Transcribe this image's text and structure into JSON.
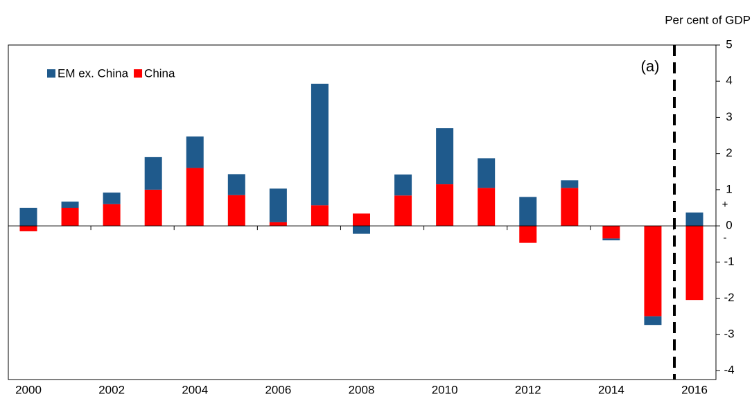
{
  "chart_data": {
    "type": "stacked-bar",
    "y_axis_label": "Per cent of GDP",
    "annotation": "(a)",
    "positive_sign": "+",
    "negative_sign": "-",
    "categories": [
      "2000",
      null,
      "2002",
      null,
      "2004",
      null,
      "2006",
      null,
      "2008",
      null,
      "2010",
      null,
      "2012",
      null,
      "2014",
      null,
      "2016"
    ],
    "series": [
      {
        "name": "China",
        "color": "#ff0000",
        "values": [
          -0.15,
          0.5,
          0.6,
          1.0,
          1.6,
          0.85,
          0.1,
          0.57,
          0.34,
          0.84,
          1.15,
          1.05,
          -0.47,
          1.05,
          -0.35,
          -2.5,
          -2.05
        ]
      },
      {
        "name": "EM ex. China",
        "color": "#1f5a8c",
        "values": [
          0.5,
          0.17,
          0.32,
          0.9,
          0.87,
          0.58,
          0.93,
          3.36,
          -0.22,
          0.58,
          1.55,
          0.82,
          0.8,
          0.21,
          -0.05,
          -0.24,
          0.37
        ]
      }
    ],
    "legend_order": [
      1,
      0
    ],
    "ylim": [
      -4,
      5
    ],
    "yticks": [
      -4,
      -3,
      -2,
      -1,
      0,
      1,
      2,
      3,
      4,
      5
    ]
  }
}
